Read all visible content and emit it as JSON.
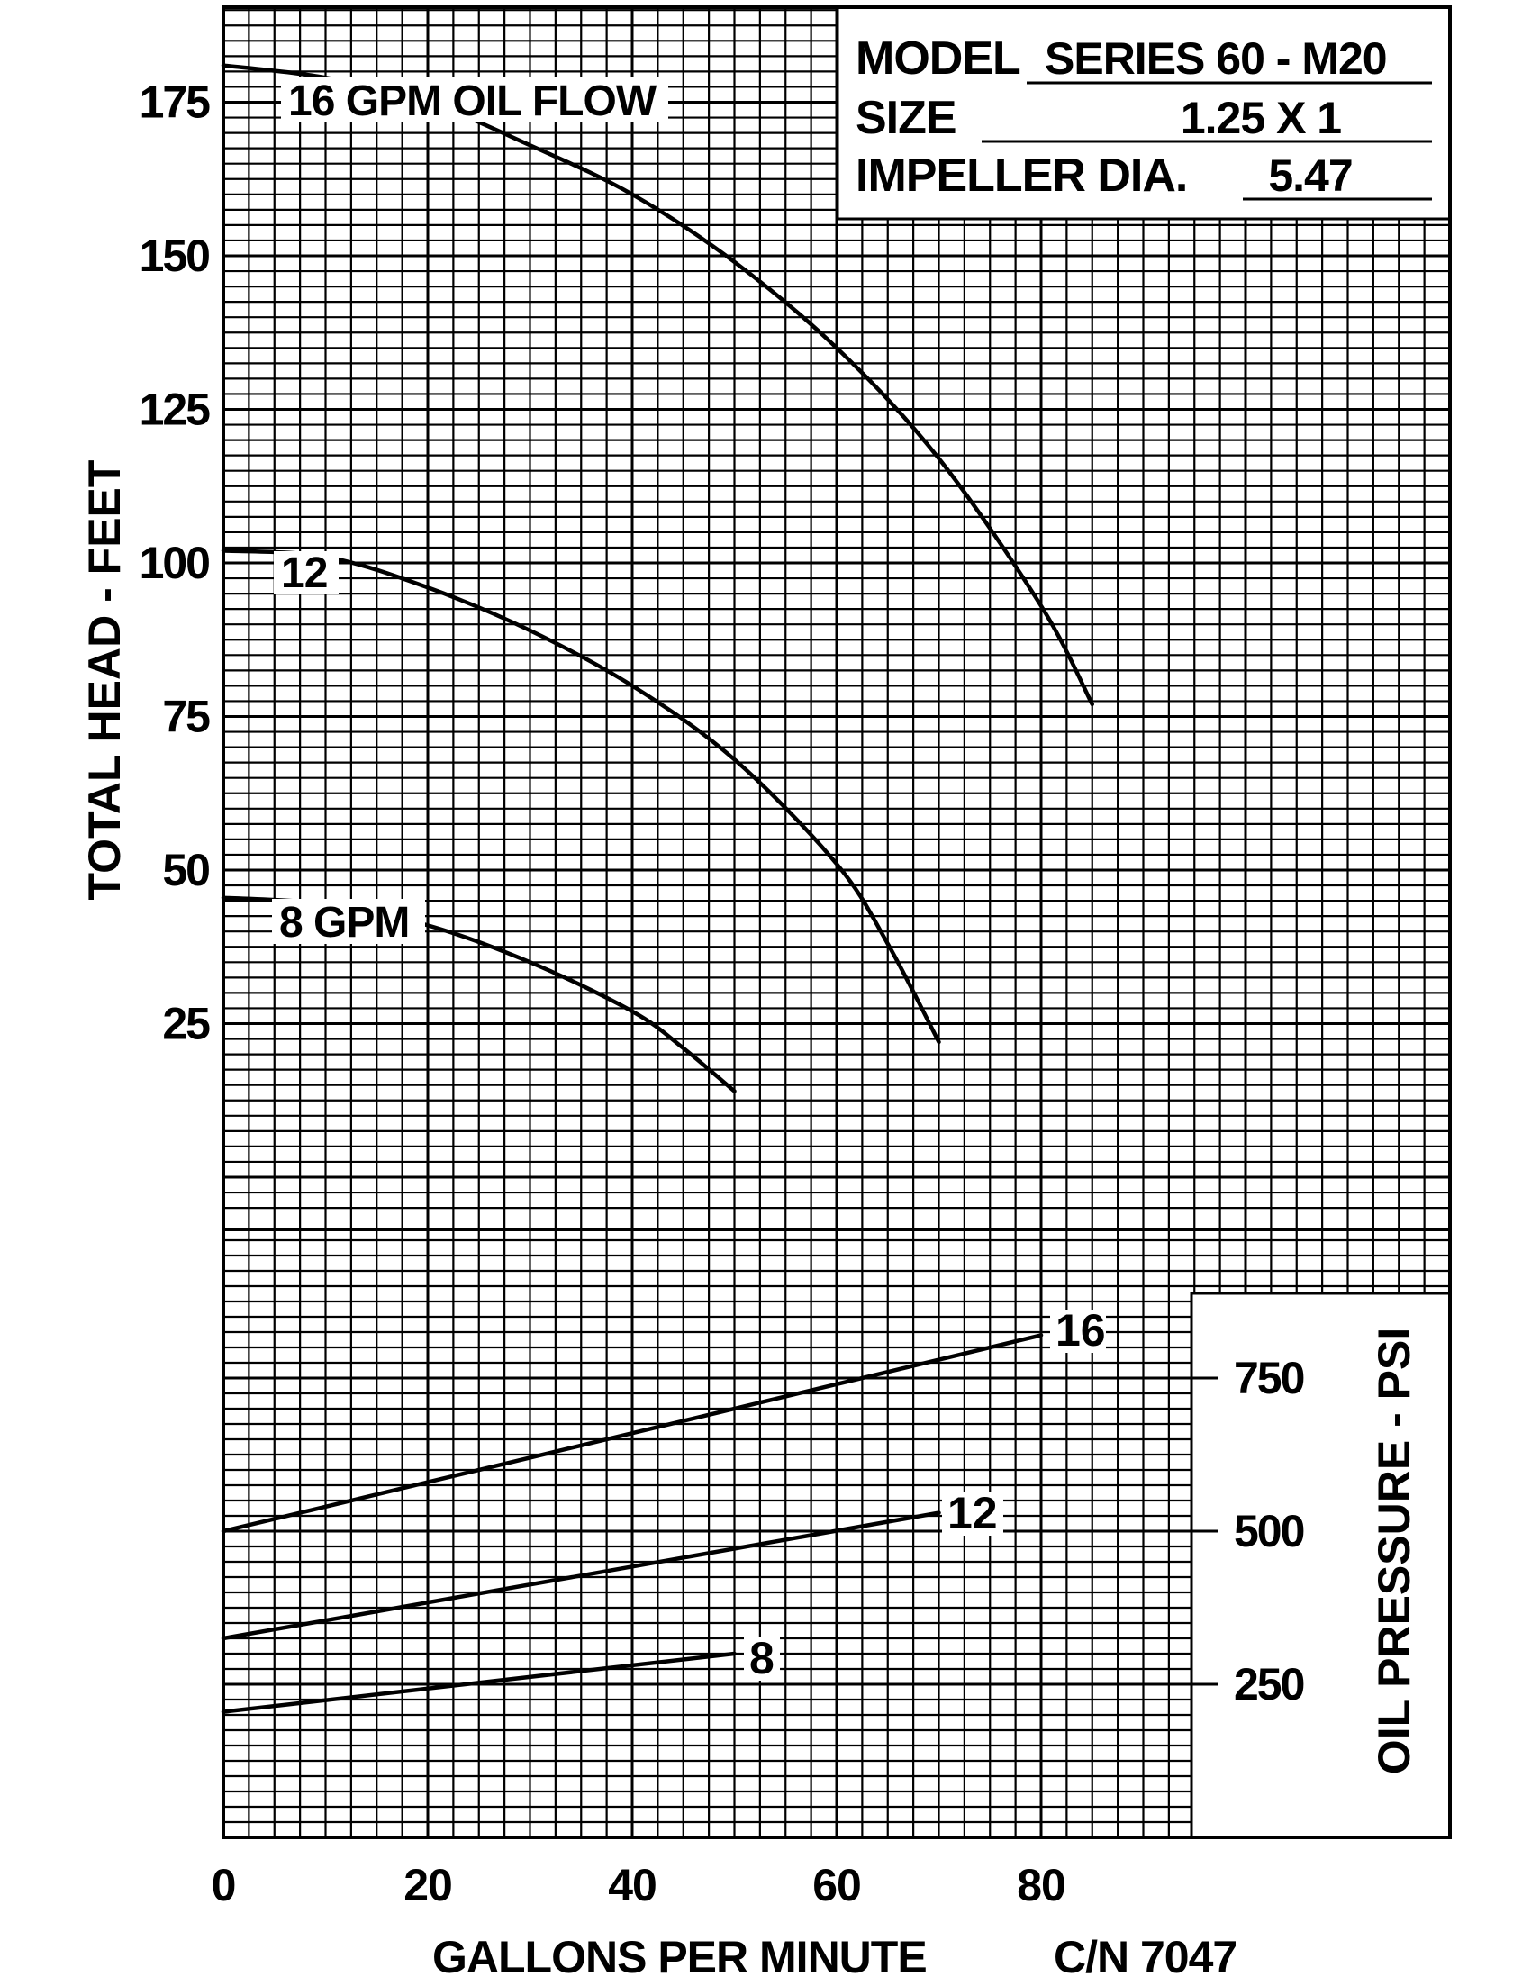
{
  "chart_data": {
    "type": "line",
    "xlabel": "GALLONS PER MINUTE",
    "part_number": "C/N 7047",
    "x_ticks": [
      "0",
      "20",
      "40",
      "60",
      "80"
    ],
    "info_box": {
      "model_label": "MODEL",
      "model_value": "SERIES 60 - M20",
      "size_label": "SIZE",
      "size_value": "1.25 X 1",
      "impeller_label": "IMPELLER DIA.",
      "impeller_value": "5.47"
    },
    "panels": [
      {
        "id": "head",
        "ylabel": "TOTAL HEAD - FEET",
        "y_ticks": [
          "25",
          "50",
          "75",
          "100",
          "125",
          "150",
          "175"
        ],
        "xlim": [
          0,
          95
        ],
        "ylim": [
          -25,
          200
        ],
        "series": [
          {
            "name": "16 GPM OIL FLOW",
            "x": [
              0,
              10,
              20,
              30,
              40,
              50,
              60,
              70,
              80,
              85
            ],
            "y": [
              181,
              179,
              175,
              168,
              160,
              149,
              135,
              117,
              93,
              77
            ]
          },
          {
            "name": "12",
            "x": [
              0,
              10,
              20,
              30,
              40,
              50,
              60,
              65,
              70
            ],
            "y": [
              102,
              101,
              96,
              89,
              80,
              68,
              51,
              38,
              22
            ]
          },
          {
            "name": "8 GPM",
            "x": [
              0,
              10,
              20,
              30,
              40,
              45,
              50
            ],
            "y": [
              45.5,
              44.5,
              41,
              35,
              27,
              21,
              14
            ]
          }
        ]
      },
      {
        "id": "pressure",
        "ylabel": "OIL PRESSURE - PSI",
        "y_ticks": [
          "250",
          "500",
          "750"
        ],
        "ylim": [
          0,
          800
        ],
        "series": [
          {
            "name": "16",
            "x": [
              0,
              80
            ],
            "y": [
              500,
              820
            ]
          },
          {
            "name": "12",
            "x": [
              0,
              70
            ],
            "y": [
              325,
              530
            ]
          },
          {
            "name": "8",
            "x": [
              0,
              50
            ],
            "y": [
              205,
              300
            ]
          }
        ]
      }
    ]
  }
}
